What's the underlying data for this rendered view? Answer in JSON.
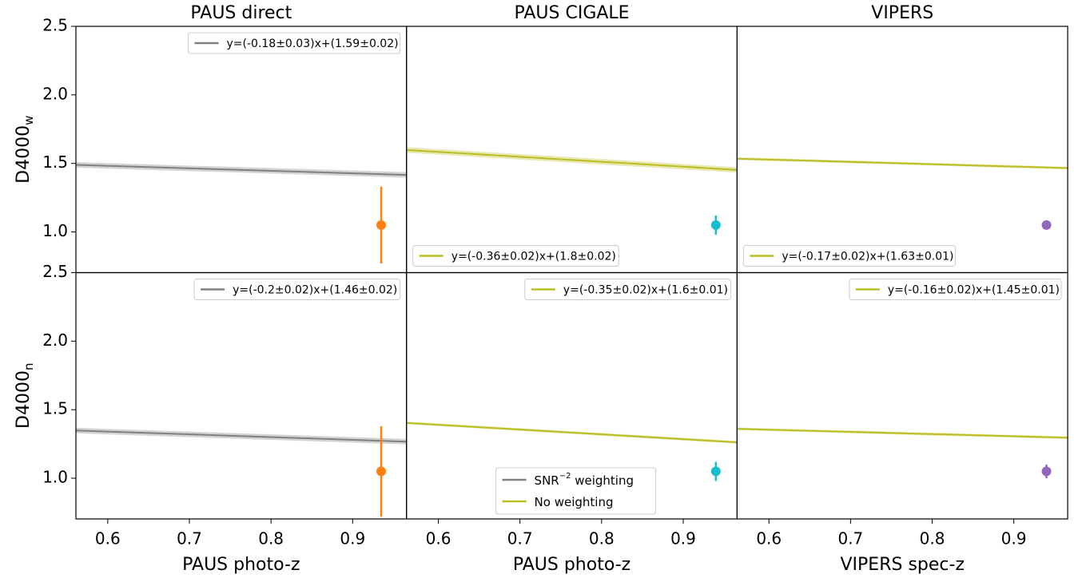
{
  "chart_data": [
    {
      "type": "scatter",
      "title": "PAUS direct",
      "ylabel": "D4000",
      "ylabel_sub": "w",
      "color": "#ff7f0e",
      "xlim": [
        0.561,
        0.966
      ],
      "ylim": [
        0.703,
        2.5
      ],
      "yticks": [
        {
          "value": 1.0,
          "label": "1.0"
        },
        1.5,
        {
          "value": 2.0,
          "label": "2.0"
        },
        2.5
      ],
      "fit": {
        "label": "y=(-0.18±0.03)x+(1.59±0.02)",
        "slope": -0.18,
        "slope_err": 0.03,
        "intercept": 1.59,
        "intercept_err": 0.02,
        "color": "#808080"
      },
      "legend_loc": "upper right",
      "errorbar": {
        "x": 0.935,
        "y": 1.05,
        "err": 0.28
      }
    },
    {
      "type": "scatter",
      "title": "PAUS CIGALE",
      "color": "#17becf",
      "xlim": [
        0.561,
        0.966
      ],
      "ylim": [
        0.703,
        2.5
      ],
      "fit": {
        "label": "y=(-0.36±0.02)x+(1.8±0.02)",
        "slope": -0.36,
        "slope_err": 0.02,
        "intercept": 1.8,
        "intercept_err": 0.02,
        "color": "#bcbd22"
      },
      "legend_loc": "lower left",
      "errorbar": {
        "x": 0.94,
        "y": 1.05,
        "err": 0.07
      }
    },
    {
      "type": "scatter",
      "title": "VIPERS",
      "color": "#9467bd",
      "xlim": [
        0.561,
        0.966
      ],
      "ylim": [
        0.703,
        2.5
      ],
      "fit": {
        "label": "y=(-0.17±0.02)x+(1.63±0.01)",
        "slope": -0.17,
        "slope_err": 0.02,
        "intercept": 1.63,
        "intercept_err": 0.01,
        "color": "#bcbd22"
      },
      "legend_loc": "lower left",
      "errorbar": {
        "x": 0.94,
        "y": 1.05,
        "err": 0.02
      }
    },
    {
      "type": "scatter",
      "xlabel": "PAUS photo-z",
      "ylabel": "D4000",
      "ylabel_sub": "n",
      "color": "#ff7f0e",
      "xlim": [
        0.561,
        0.966
      ],
      "ylim": [
        0.703,
        2.5
      ],
      "xticks": [
        0.6,
        0.7,
        0.8,
        0.9
      ],
      "yticks": [
        {
          "value": 1.0,
          "label": "1.0"
        },
        1.5,
        {
          "value": 2.0,
          "label": "2.0"
        },
        2.5
      ],
      "fit": {
        "label": "y=(-0.2±0.02)x+(1.46±0.02)",
        "slope": -0.2,
        "slope_err": 0.02,
        "intercept": 1.46,
        "intercept_err": 0.02,
        "color": "#808080"
      },
      "legend_loc": "upper right",
      "errorbar": {
        "x": 0.935,
        "y": 1.05,
        "err": 0.33
      }
    },
    {
      "type": "scatter",
      "xlabel": "PAUS photo-z",
      "color": "#17becf",
      "xlim": [
        0.561,
        0.966
      ],
      "ylim": [
        0.703,
        2.5
      ],
      "xticks": [
        0.6,
        0.7,
        0.8,
        0.9
      ],
      "fit": {
        "label": "y=(-0.35±0.02)x+(1.6±0.01)",
        "slope": -0.35,
        "slope_err": 0.02,
        "intercept": 1.6,
        "intercept_err": 0.01,
        "color": "#bcbd22"
      },
      "legend_loc": "upper right",
      "errorbar": {
        "x": 0.94,
        "y": 1.05,
        "err": 0.07
      },
      "legend": [
        {
          "text": "SNR",
          "sup": "−2",
          "rest": " weighting",
          "color": "#808080"
        },
        {
          "text": "No weighting",
          "color": "#bcbd22"
        }
      ]
    },
    {
      "type": "scatter",
      "xlabel": "VIPERS spec-z",
      "color": "#9467bd",
      "xlim": [
        0.561,
        0.966
      ],
      "ylim": [
        0.703,
        2.5
      ],
      "xticks": [
        0.6,
        0.7,
        0.8,
        0.9
      ],
      "fit": {
        "label": "y=(-0.16±0.02)x+(1.45±0.01)",
        "slope": -0.16,
        "slope_err": 0.02,
        "intercept": 1.45,
        "intercept_err": 0.01,
        "color": "#bcbd22"
      },
      "legend_loc": "upper right",
      "errorbar": {
        "x": 0.94,
        "y": 1.05,
        "err": 0.05
      }
    }
  ]
}
